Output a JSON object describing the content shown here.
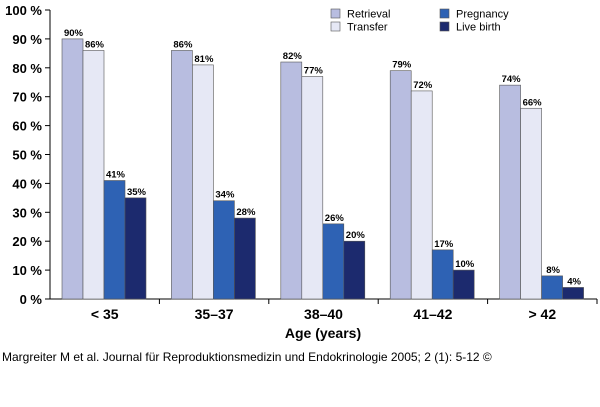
{
  "chart_data": {
    "type": "bar",
    "title": "",
    "xlabel": "Age (years)",
    "ylabel": "",
    "ylim": [
      0,
      100
    ],
    "yticks": [
      0,
      10,
      20,
      30,
      40,
      50,
      60,
      70,
      80,
      90,
      100
    ],
    "ytick_suffix": " %",
    "grid": false,
    "legend_position": "top-right",
    "categories": [
      "< 35",
      "35–37",
      "38–40",
      "41–42",
      "> 42"
    ],
    "series": [
      {
        "name": "Retrieval",
        "values": [
          90,
          86,
          82,
          79,
          74
        ],
        "labels": [
          "90%",
          "86%",
          "82%",
          "79%",
          "74%"
        ],
        "color": "#b8bde0"
      },
      {
        "name": "Transfer",
        "values": [
          86,
          81,
          77,
          72,
          66
        ],
        "labels": [
          "86%",
          "81%",
          "77%",
          "72%",
          "66%"
        ],
        "color": "#e6e8f5"
      },
      {
        "name": "Pregnancy",
        "values": [
          41,
          34,
          26,
          17,
          8
        ],
        "labels": [
          "41%",
          "34%",
          "26%",
          "17%",
          "8%"
        ],
        "color": "#2e62b4"
      },
      {
        "name": "Live birth",
        "values": [
          35,
          28,
          20,
          10,
          4
        ],
        "labels": [
          "35%",
          "28%",
          "20%",
          "10%",
          "4%"
        ],
        "color": "#1c2a6e"
      }
    ]
  },
  "caption": "Margreiter M et al. Journal für Reproduktionsmedizin und Endokrinologie 2005; 2 (1): 5-12 ©"
}
